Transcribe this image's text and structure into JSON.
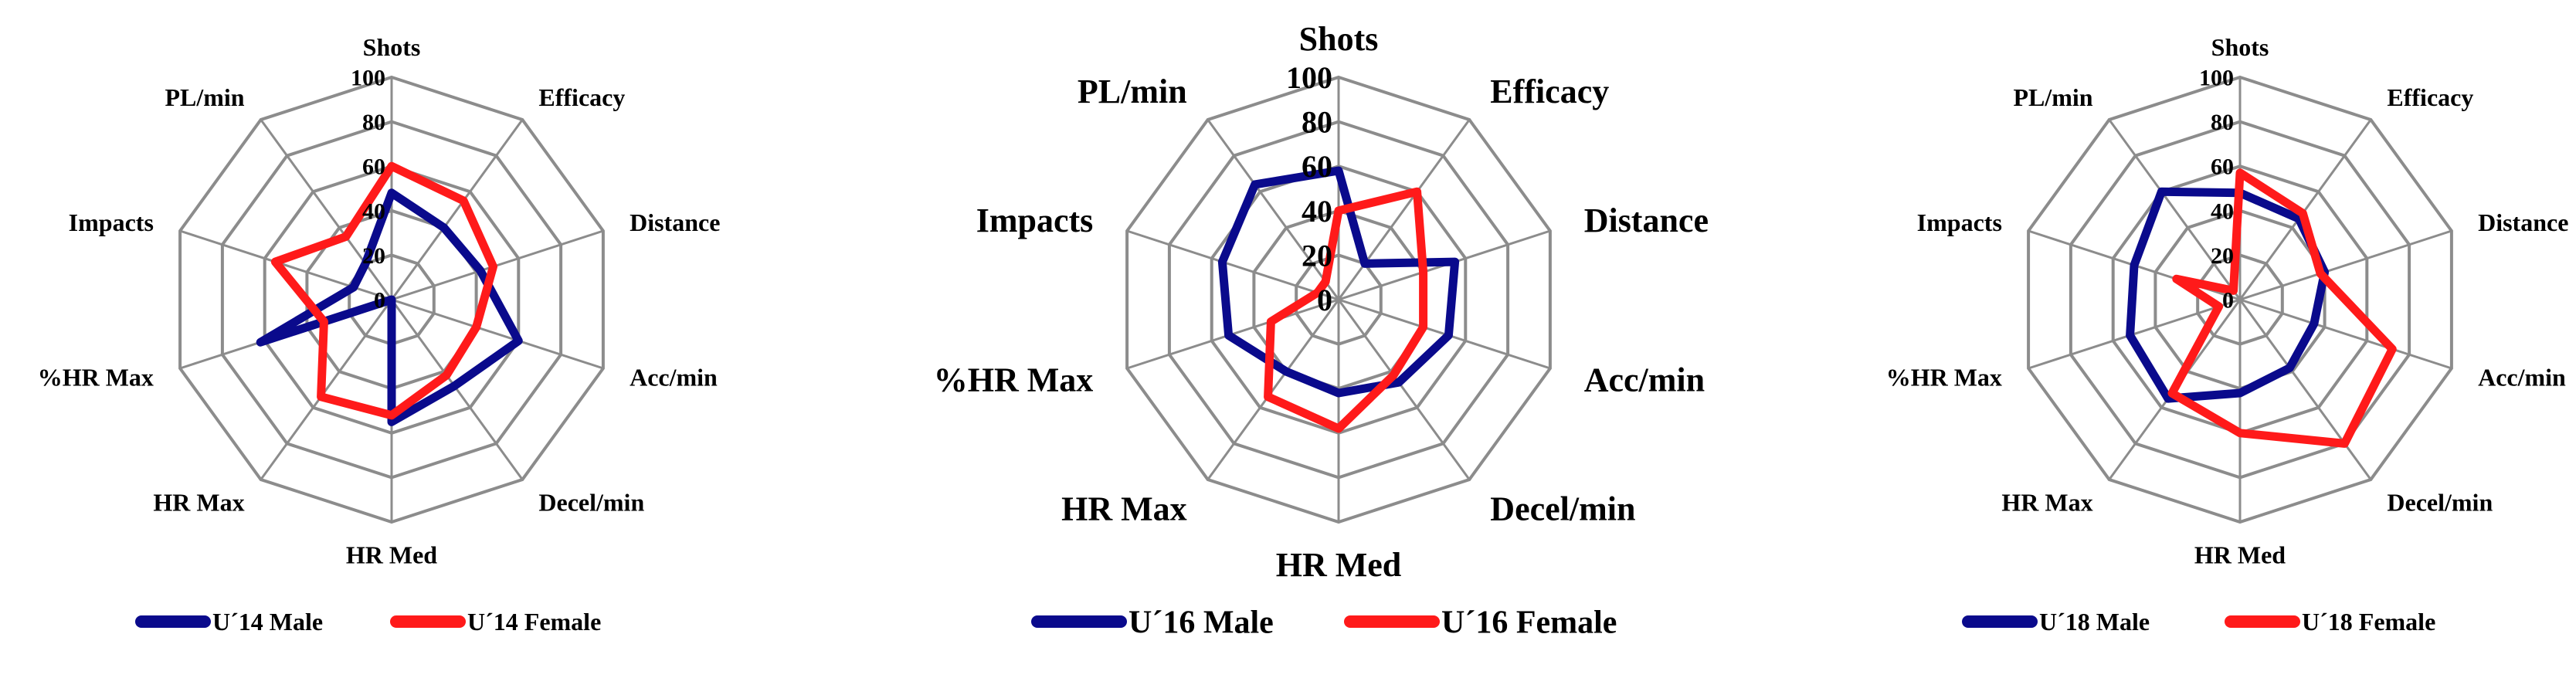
{
  "colors": {
    "male": "#0a0a8c",
    "female": "#ff1a1a",
    "grid": "#8c8c8c",
    "text": "#000000"
  },
  "chart_data": [
    {
      "type": "radar",
      "axes": [
        "Shots",
        "Efficacy",
        "Distance",
        "Acc/min",
        "Decel/min",
        "HR Med",
        "HR Max",
        "%HR Max",
        "Impacts",
        "PL/min"
      ],
      "ticks": [
        0,
        20,
        40,
        60,
        80,
        100
      ],
      "rlim": [
        0,
        100
      ],
      "legend_position": "bottom",
      "series": [
        {
          "name": "U´14 Male",
          "color": "#0a0a8c",
          "values": [
            48,
            40,
            42,
            60,
            48,
            55,
            0,
            62,
            18,
            20
          ]
        },
        {
          "name": "U´14 Female",
          "color": "#ff1a1a",
          "values": [
            60,
            55,
            48,
            40,
            42,
            52,
            54,
            32,
            55,
            35
          ]
        }
      ]
    },
    {
      "type": "radar",
      "axes": [
        "Shots",
        "Efficacy",
        "Distance",
        "Acc/min",
        "Decel/min",
        "HR Med",
        "HR Max",
        "%HR Max",
        "Impacts",
        "PL/min"
      ],
      "ticks": [
        0,
        20,
        40,
        60,
        80,
        100
      ],
      "rlim": [
        0,
        100
      ],
      "legend_position": "bottom",
      "series": [
        {
          "name": "U´16 Male",
          "color": "#0a0a8c",
          "values": [
            58,
            20,
            55,
            52,
            46,
            42,
            40,
            52,
            55,
            64
          ]
        },
        {
          "name": "U´16 Female",
          "color": "#ff1a1a",
          "values": [
            40,
            60,
            40,
            40,
            42,
            58,
            54,
            32,
            10,
            10
          ]
        }
      ]
    },
    {
      "type": "radar",
      "axes": [
        "Shots",
        "Efficacy",
        "Distance",
        "Acc/min",
        "Decel/min",
        "HR Med",
        "HR Max",
        "%HR Max",
        "Impacts",
        "PL/min"
      ],
      "ticks": [
        0,
        20,
        40,
        60,
        80,
        100
      ],
      "rlim": [
        0,
        100
      ],
      "legend_position": "bottom",
      "series": [
        {
          "name": "U´18 Male",
          "color": "#0a0a8c",
          "values": [
            48,
            45,
            40,
            35,
            38,
            42,
            55,
            52,
            50,
            60
          ]
        },
        {
          "name": "U´18 Female",
          "color": "#ff1a1a",
          "values": [
            57,
            48,
            38,
            72,
            80,
            60,
            52,
            10,
            30,
            5
          ]
        }
      ]
    }
  ]
}
